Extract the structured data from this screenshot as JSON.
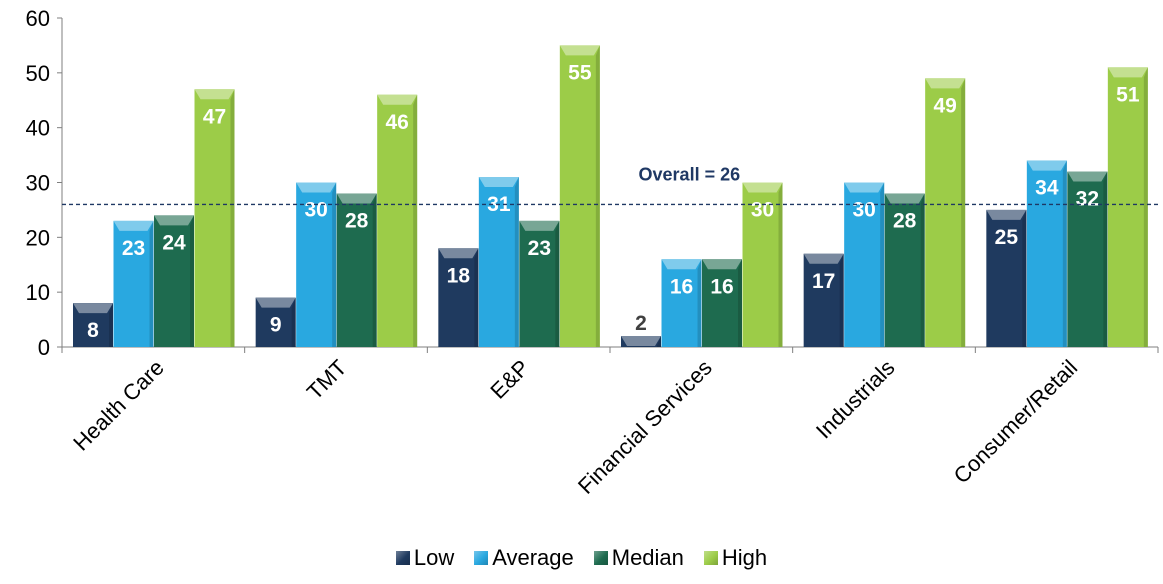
{
  "chart_data": {
    "type": "bar",
    "categories": [
      "Health Care",
      "TMT",
      "E&P",
      "Financial Services",
      "Industrials",
      "Consumer/Retail"
    ],
    "series": [
      {
        "name": "Low",
        "values": [
          8,
          9,
          18,
          2,
          17,
          25
        ],
        "color": "#1f3a5f"
      },
      {
        "name": "Average",
        "values": [
          23,
          30,
          31,
          16,
          30,
          34
        ],
        "color": "#29a8e0"
      },
      {
        "name": "Median",
        "values": [
          24,
          28,
          23,
          16,
          28,
          32
        ],
        "color": "#1e6b4f"
      },
      {
        "name": "High",
        "values": [
          47,
          46,
          55,
          30,
          49,
          51
        ],
        "color": "#9ccc48"
      }
    ],
    "ylim": [
      0,
      60
    ],
    "yticks": [
      0,
      10,
      20,
      30,
      40,
      50,
      60
    ],
    "reference_line": {
      "value": 26,
      "label": "Overall = 26",
      "color": "#1f3864"
    },
    "grid": false,
    "legend_position": "bottom"
  }
}
